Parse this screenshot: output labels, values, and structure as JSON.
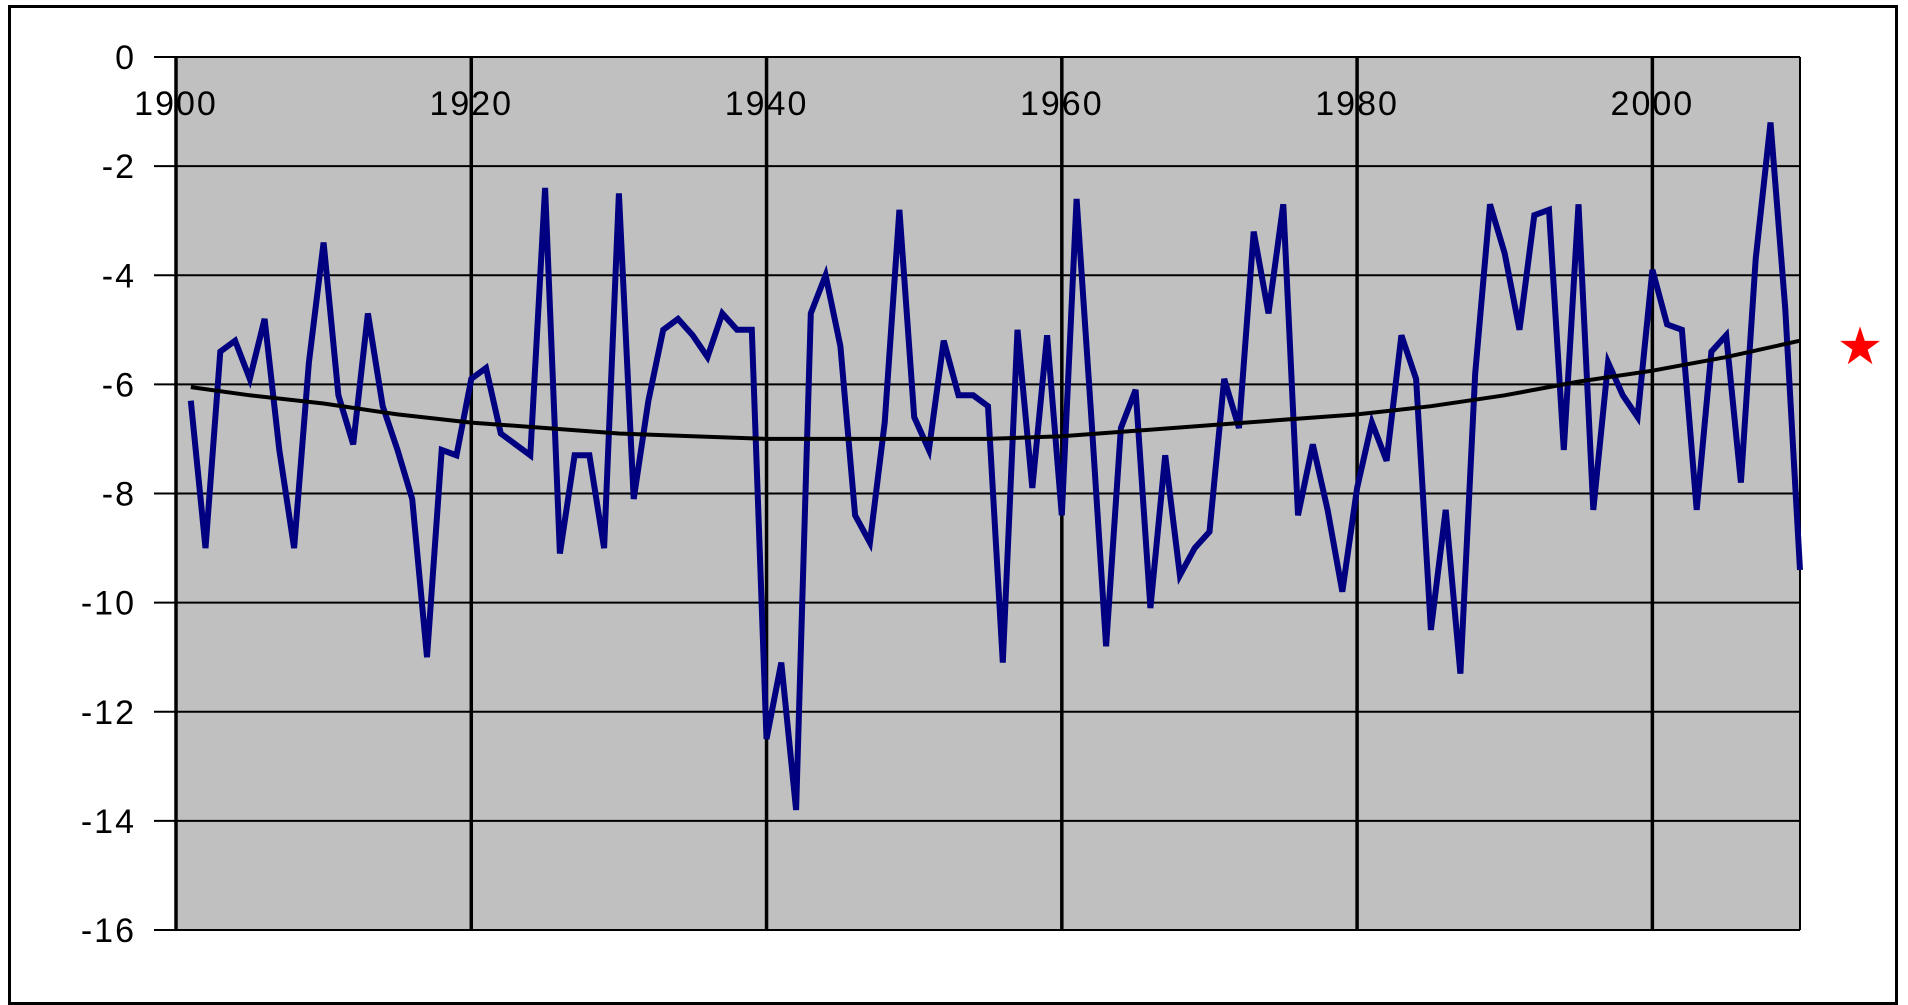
{
  "chart_data": {
    "type": "line",
    "title": "",
    "xlabel": "",
    "ylabel": "",
    "xlim": [
      1900,
      2010
    ],
    "ylim": [
      -16,
      0
    ],
    "x_ticks": [
      1900,
      1920,
      1940,
      1960,
      1980,
      2000
    ],
    "x_tick_labels": [
      "1900",
      "1920",
      "1940",
      "1960",
      "1980",
      "2000"
    ],
    "y_ticks": [
      0,
      -2,
      -4,
      -6,
      -8,
      -10,
      -12,
      -14,
      -16
    ],
    "y_tick_labels": [
      "0",
      "-2",
      "-4",
      "-6",
      "-8",
      "-10",
      "-12",
      "-14",
      "-16"
    ],
    "grid": true,
    "background_color": "#c0c0c0",
    "series": [
      {
        "role": "annual",
        "color": "#000080",
        "x": [
          1901,
          1902,
          1903,
          1904,
          1905,
          1906,
          1907,
          1908,
          1909,
          1910,
          1911,
          1912,
          1913,
          1914,
          1915,
          1916,
          1917,
          1918,
          1919,
          1920,
          1921,
          1922,
          1923,
          1924,
          1925,
          1926,
          1927,
          1928,
          1929,
          1930,
          1931,
          1932,
          1933,
          1934,
          1935,
          1936,
          1937,
          1938,
          1939,
          1940,
          1941,
          1942,
          1943,
          1944,
          1945,
          1946,
          1947,
          1948,
          1949,
          1950,
          1951,
          1952,
          1953,
          1954,
          1955,
          1956,
          1957,
          1958,
          1959,
          1960,
          1961,
          1962,
          1963,
          1964,
          1965,
          1966,
          1967,
          1968,
          1969,
          1970,
          1971,
          1972,
          1973,
          1974,
          1975,
          1976,
          1977,
          1978,
          1979,
          1980,
          1981,
          1982,
          1983,
          1984,
          1985,
          1986,
          1987,
          1988,
          1989,
          1990,
          1991,
          1992,
          1993,
          1994,
          1995,
          1996,
          1997,
          1998,
          1999,
          2000,
          2001,
          2002,
          2003,
          2004,
          2005,
          2006,
          2007,
          2008,
          2009,
          2010
        ],
        "y": [
          -6.3,
          -9.0,
          -5.4,
          -5.2,
          -5.9,
          -4.8,
          -7.2,
          -9.0,
          -5.6,
          -3.4,
          -6.2,
          -7.1,
          -4.7,
          -6.4,
          -7.2,
          -8.1,
          -11.0,
          -7.2,
          -7.3,
          -5.9,
          -5.7,
          -6.9,
          -7.1,
          -7.3,
          -2.4,
          -9.1,
          -7.3,
          -7.3,
          -9.0,
          -2.5,
          -8.1,
          -6.3,
          -5.0,
          -4.8,
          -5.1,
          -5.5,
          -4.7,
          -5.0,
          -5.0,
          -12.5,
          -11.1,
          -13.8,
          -4.7,
          -4.0,
          -5.3,
          -8.4,
          -8.9,
          -6.7,
          -2.8,
          -6.6,
          -7.2,
          -5.2,
          -6.2,
          -6.2,
          -6.4,
          -11.1,
          -5.0,
          -7.9,
          -5.1,
          -8.4,
          -2.6,
          -6.6,
          -10.8,
          -6.8,
          -6.1,
          -10.1,
          -7.3,
          -9.5,
          -9.0,
          -8.7,
          -5.9,
          -6.8,
          -3.2,
          -4.7,
          -2.7,
          -8.4,
          -7.1,
          -8.3,
          -9.8,
          -7.9,
          -6.7,
          -7.4,
          -5.1,
          -5.9,
          -10.5,
          -8.3,
          -11.3,
          -5.8,
          -2.7,
          -3.6,
          -5.0,
          -2.9,
          -2.8,
          -7.2,
          -2.7,
          -8.3,
          -5.6,
          -6.2,
          -6.6,
          -3.9,
          -4.9,
          -5.0,
          -8.3,
          -5.4,
          -5.1,
          -7.8,
          -3.7,
          -1.2,
          -4.6,
          -9.4
        ]
      },
      {
        "role": "trend",
        "color": "#000000",
        "x": [
          1901,
          1905,
          1910,
          1915,
          1920,
          1925,
          1930,
          1935,
          1940,
          1945,
          1950,
          1955,
          1960,
          1965,
          1970,
          1975,
          1980,
          1985,
          1990,
          1995,
          2000,
          2005,
          2010
        ],
        "y": [
          -6.05,
          -6.2,
          -6.35,
          -6.55,
          -6.7,
          -6.8,
          -6.9,
          -6.95,
          -7.0,
          -7.0,
          -7.0,
          -7.0,
          -6.95,
          -6.85,
          -6.75,
          -6.65,
          -6.55,
          -6.4,
          -6.2,
          -5.95,
          -5.75,
          -5.5,
          -5.2
        ]
      }
    ],
    "annotations": [
      {
        "symbol": "★",
        "color": "#ff0000",
        "value": -5.3
      }
    ]
  }
}
